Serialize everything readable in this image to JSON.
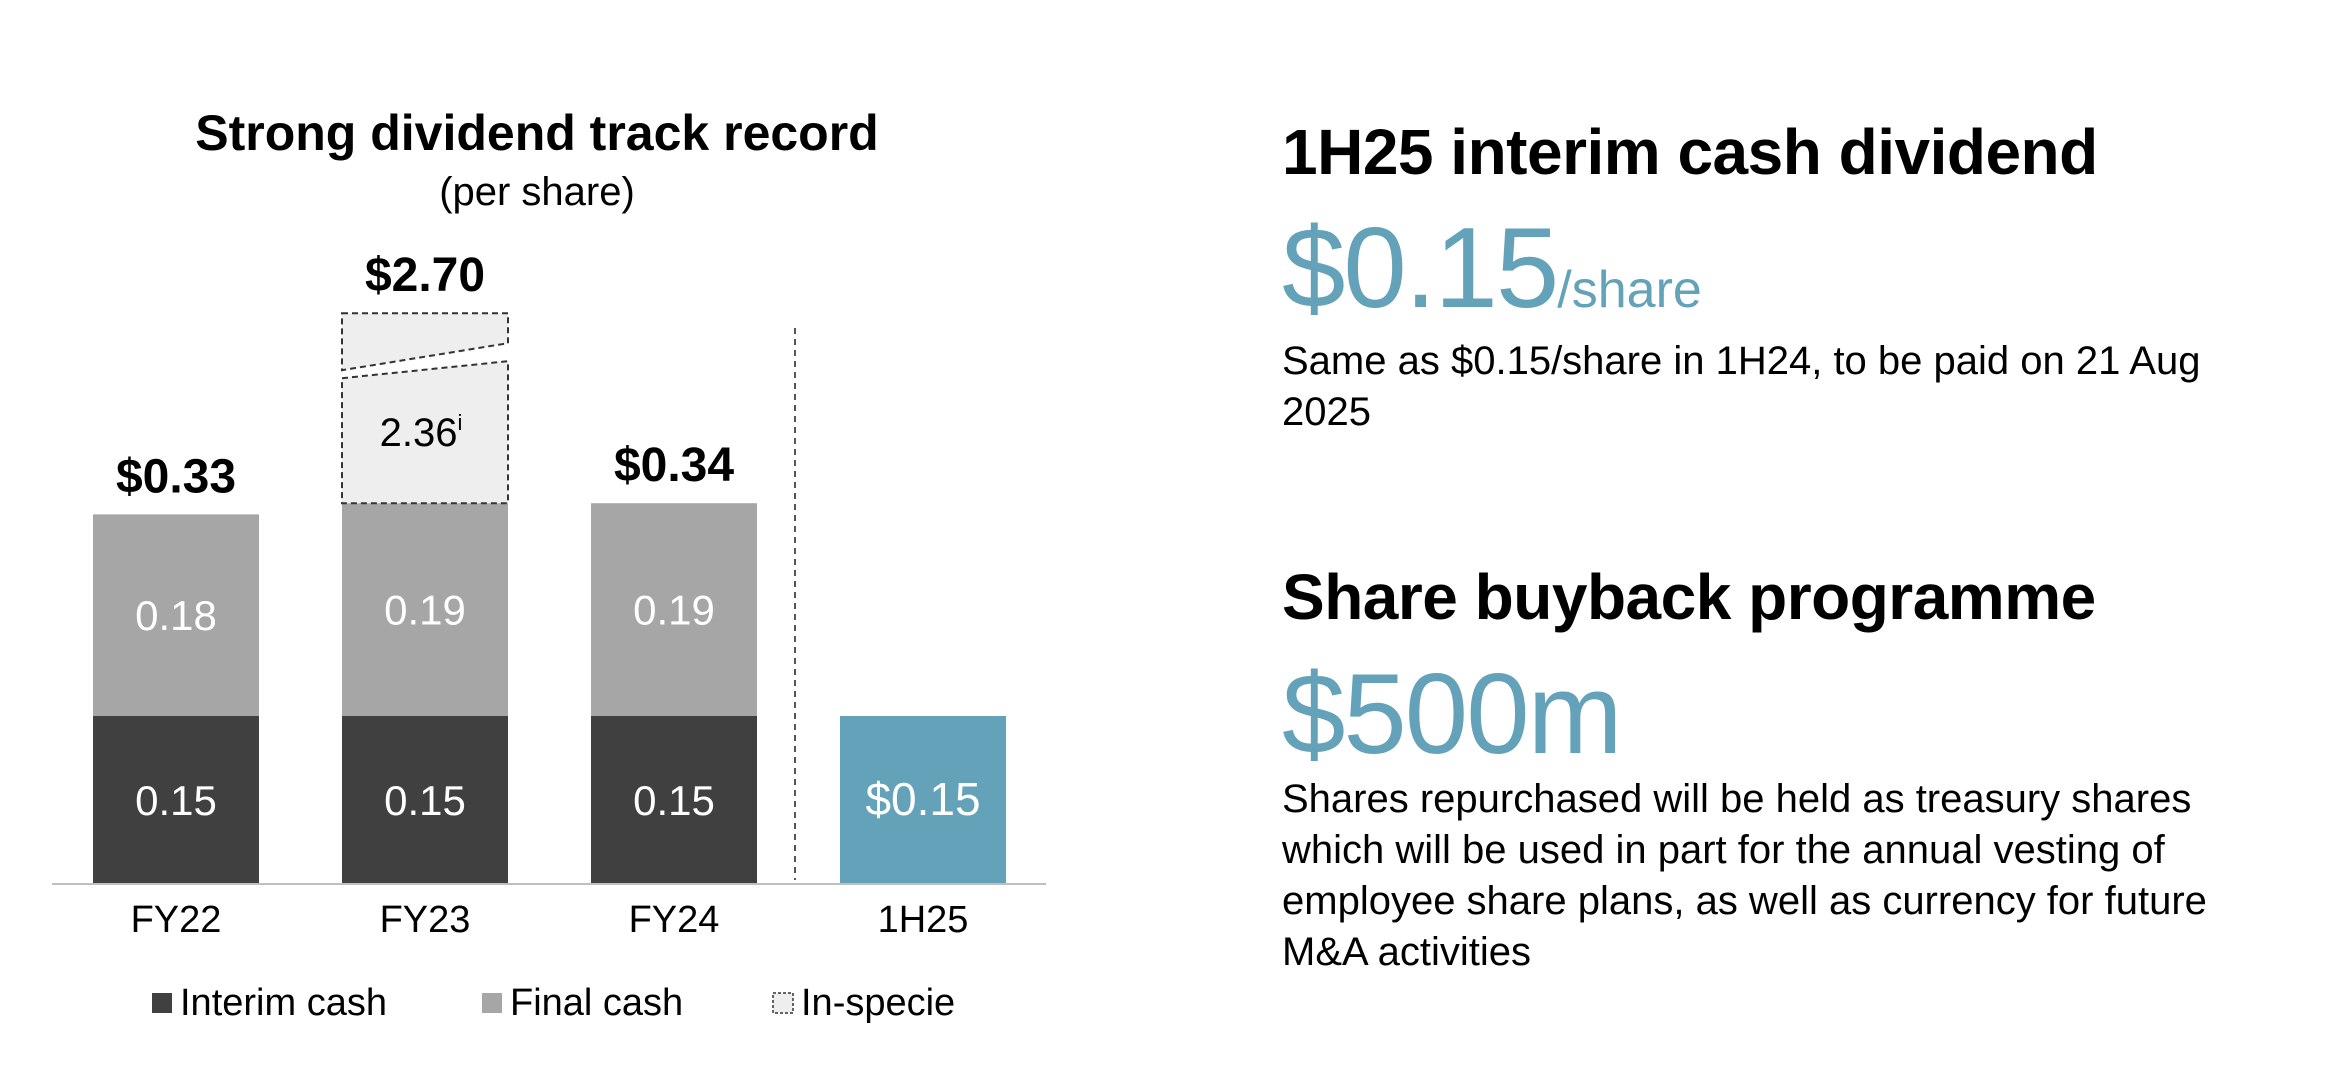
{
  "colors": {
    "interim": "#404040",
    "final": "#a6a6a6",
    "in_specie_fill": "#eeeeee",
    "highlight": "#64a2ba",
    "axis": "#bfbfbf"
  },
  "chart_data": {
    "type": "bar",
    "stacked": true,
    "title": "Strong dividend track record",
    "subtitle": "(per share)",
    "categories": [
      "FY22",
      "FY23",
      "FY24",
      "1H25"
    ],
    "series": [
      {
        "name": "Interim cash",
        "values": [
          0.15,
          0.15,
          0.15,
          0.15
        ],
        "labels": [
          "0.15",
          "0.15",
          "0.15",
          "$0.15"
        ]
      },
      {
        "name": "Final cash",
        "values": [
          0.18,
          0.19,
          0.19,
          null
        ],
        "labels": [
          "0.18",
          "0.19",
          "0.19",
          ""
        ]
      },
      {
        "name": "In-specie",
        "values": [
          null,
          2.36,
          null,
          null
        ],
        "labels": [
          "",
          "2.36",
          "",
          ""
        ],
        "label_note": "i"
      }
    ],
    "totals": [
      "$0.33",
      "$2.70",
      "$0.34",
      ""
    ],
    "axis_break": "FY23 In-specie bar truncated",
    "legend": {
      "position": "bottom",
      "entries": [
        "Interim cash",
        "Final cash",
        "In-specie"
      ]
    },
    "grid": false,
    "separator": "dashed vertical line before 1H25"
  },
  "dividend": {
    "title": "1H25 interim cash dividend",
    "value": "$0.15",
    "unit": "/share",
    "description": "Same as $0.15/share in 1H24, to be paid on 21 Aug 2025"
  },
  "buyback": {
    "title": "Share buyback programme",
    "value": "$500m",
    "description": "Shares repurchased will be held as treasury shares which will be used in part for the annual vesting of employee share plans, as well as currency for future M&A activities"
  }
}
